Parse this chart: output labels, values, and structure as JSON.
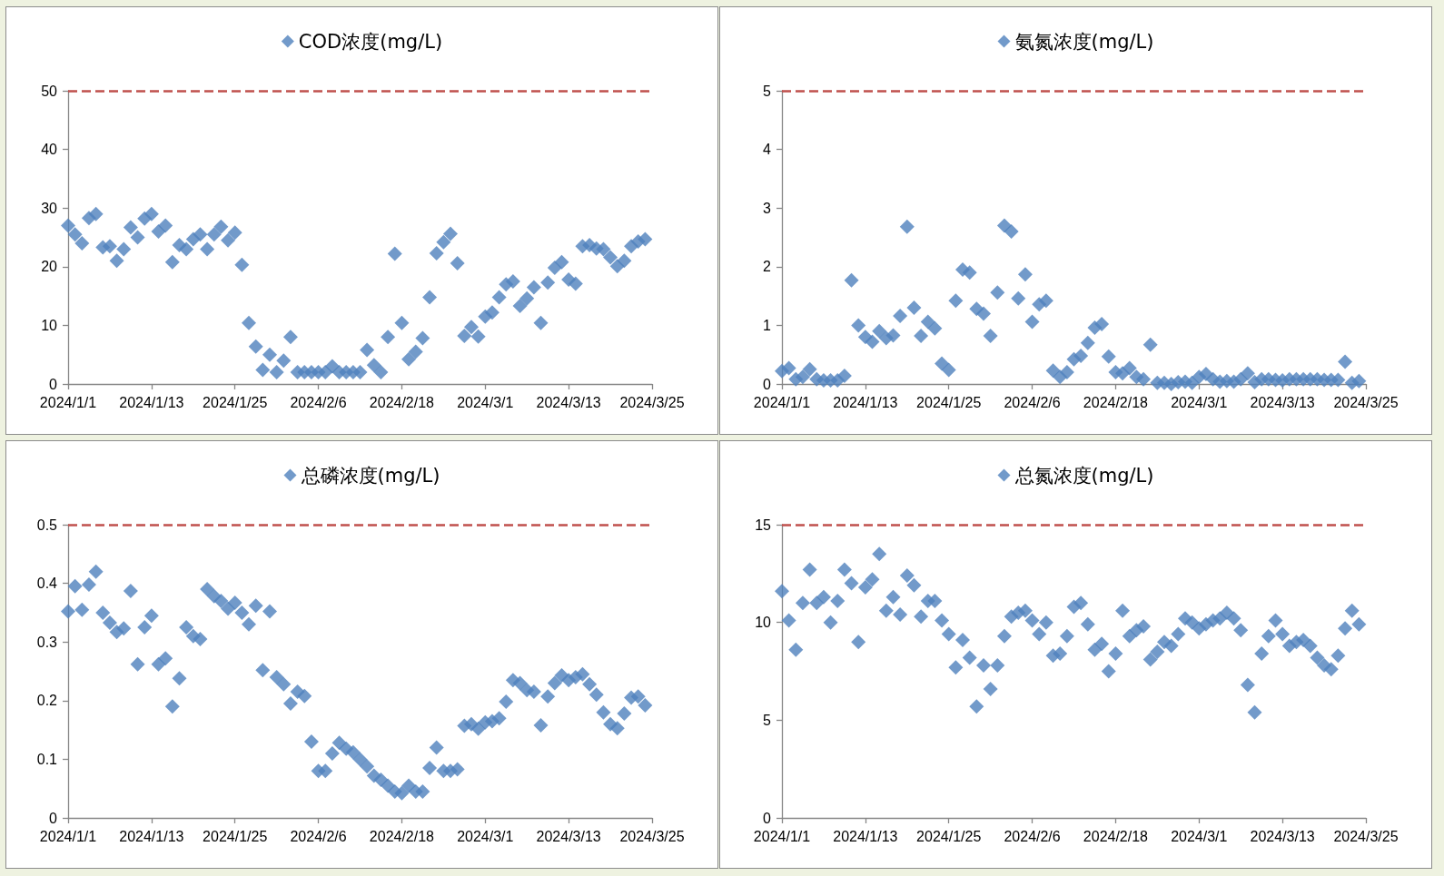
{
  "chart_data": [
    {
      "type": "scatter",
      "legend": "top",
      "marker": "diamond",
      "grid": false,
      "x": [
        "2024-01-01",
        "2024-01-02",
        "2024-01-03",
        "2024-01-04",
        "2024-01-05",
        "2024-01-06",
        "2024-01-07",
        "2024-01-08",
        "2024-01-09",
        "2024-01-10",
        "2024-01-11",
        "2024-01-12",
        "2024-01-13",
        "2024-01-14",
        "2024-01-15",
        "2024-01-16",
        "2024-01-17",
        "2024-01-18",
        "2024-01-19",
        "2024-01-20",
        "2024-01-21",
        "2024-01-22",
        "2024-01-23",
        "2024-01-24",
        "2024-01-25",
        "2024-01-26",
        "2024-01-27",
        "2024-01-28",
        "2024-01-29",
        "2024-01-30",
        "2024-01-31",
        "2024-02-01",
        "2024-02-02",
        "2024-02-03",
        "2024-02-04",
        "2024-02-05",
        "2024-02-06",
        "2024-02-07",
        "2024-02-08",
        "2024-02-09",
        "2024-02-10",
        "2024-02-11",
        "2024-02-12",
        "2024-02-13",
        "2024-02-14",
        "2024-02-15",
        "2024-02-16",
        "2024-02-17",
        "2024-02-18",
        "2024-02-19",
        "2024-02-20",
        "2024-02-21",
        "2024-02-22",
        "2024-02-23",
        "2024-02-24",
        "2024-02-25",
        "2024-02-26",
        "2024-02-27",
        "2024-02-28",
        "2024-02-29",
        "2024-03-01",
        "2024-03-02",
        "2024-03-03",
        "2024-03-04",
        "2024-03-05",
        "2024-03-06",
        "2024-03-07",
        "2024-03-08",
        "2024-03-09",
        "2024-03-10",
        "2024-03-11",
        "2024-03-12",
        "2024-03-13",
        "2024-03-14",
        "2024-03-15",
        "2024-03-16",
        "2024-03-17",
        "2024-03-18",
        "2024-03-19",
        "2024-03-20",
        "2024-03-21",
        "2024-03-22",
        "2024-03-23",
        "2024-03-24"
      ],
      "xlim": [
        "2024-01-01",
        "2024-03-25"
      ],
      "xticks": [
        {
          "value": "2024-01-01",
          "label": "2024/1/1"
        },
        {
          "value": "2024-01-13",
          "label": "2024/1/13"
        },
        {
          "value": "2024-01-25",
          "label": "2024/1/25"
        },
        {
          "value": "2024-02-06",
          "label": "2024/2/6"
        },
        {
          "value": "2024-02-18",
          "label": "2024/2/18"
        },
        {
          "value": "2024-03-01",
          "label": "2024/3/1"
        },
        {
          "value": "2024-03-13",
          "label": "2024/3/13"
        },
        {
          "value": "2024-03-25",
          "label": "2024/3/25"
        }
      ],
      "ylim": [
        0,
        50
      ],
      "yticks": [
        0,
        10,
        20,
        30,
        40,
        50
      ],
      "ref_lines": [
        {
          "axis": "y",
          "value": 50,
          "color": "#c0504d",
          "line_style": "dashed"
        }
      ],
      "series": [
        {
          "name": "COD浓度(mg/L)",
          "color": "#4f81bd",
          "values": [
            27,
            25.5,
            24,
            28.3,
            29,
            23.3,
            23.5,
            21,
            23,
            26.7,
            25,
            28.2,
            29,
            26,
            27,
            20.8,
            23.7,
            23,
            24.7,
            25.5,
            23,
            25.5,
            26.8,
            24.5,
            25.8,
            20.3,
            10.4,
            6.4,
            2.4,
            5,
            2,
            4,
            8,
            2,
            2,
            2,
            2,
            2,
            3,
            2,
            2,
            2,
            2,
            5.8,
            3.2,
            2,
            8,
            22.2,
            10.4,
            4.2,
            5.5,
            7.8,
            14.8,
            22.3,
            24.2,
            25.6,
            20.6,
            8.2,
            9.7,
            8.1,
            11.5,
            12.2,
            14.8,
            17,
            17.5,
            13.3,
            14.6,
            16.5,
            10.4,
            17.3,
            19.8,
            20.8,
            17.8,
            17.1,
            23.5,
            23.7,
            23.1,
            23,
            21.6,
            20.1,
            21,
            23.5,
            24.3,
            24.7
          ]
        }
      ]
    },
    {
      "type": "scatter",
      "legend": "top",
      "marker": "diamond",
      "grid": false,
      "x": [
        "2024-01-01",
        "2024-01-02",
        "2024-01-03",
        "2024-01-04",
        "2024-01-05",
        "2024-01-06",
        "2024-01-07",
        "2024-01-08",
        "2024-01-09",
        "2024-01-10",
        "2024-01-11",
        "2024-01-12",
        "2024-01-13",
        "2024-01-14",
        "2024-01-15",
        "2024-01-16",
        "2024-01-17",
        "2024-01-18",
        "2024-01-19",
        "2024-01-20",
        "2024-01-21",
        "2024-01-22",
        "2024-01-23",
        "2024-01-24",
        "2024-01-25",
        "2024-01-26",
        "2024-01-27",
        "2024-01-28",
        "2024-01-29",
        "2024-01-30",
        "2024-01-31",
        "2024-02-01",
        "2024-02-02",
        "2024-02-03",
        "2024-02-04",
        "2024-02-05",
        "2024-02-06",
        "2024-02-07",
        "2024-02-08",
        "2024-02-09",
        "2024-02-10",
        "2024-02-11",
        "2024-02-12",
        "2024-02-13",
        "2024-02-14",
        "2024-02-15",
        "2024-02-16",
        "2024-02-17",
        "2024-02-18",
        "2024-02-19",
        "2024-02-20",
        "2024-02-21",
        "2024-02-22",
        "2024-02-23",
        "2024-02-24",
        "2024-02-25",
        "2024-02-26",
        "2024-02-27",
        "2024-02-28",
        "2024-02-29",
        "2024-03-01",
        "2024-03-02",
        "2024-03-03",
        "2024-03-04",
        "2024-03-05",
        "2024-03-06",
        "2024-03-07",
        "2024-03-08",
        "2024-03-09",
        "2024-03-10",
        "2024-03-11",
        "2024-03-12",
        "2024-03-13",
        "2024-03-14",
        "2024-03-15",
        "2024-03-16",
        "2024-03-17",
        "2024-03-18",
        "2024-03-19",
        "2024-03-20",
        "2024-03-21",
        "2024-03-22",
        "2024-03-23",
        "2024-03-24"
      ],
      "xlim": [
        "2024-01-01",
        "2024-03-25"
      ],
      "xticks": [
        {
          "value": "2024-01-01",
          "label": "2024/1/1"
        },
        {
          "value": "2024-01-13",
          "label": "2024/1/13"
        },
        {
          "value": "2024-01-25",
          "label": "2024/1/25"
        },
        {
          "value": "2024-02-06",
          "label": "2024/2/6"
        },
        {
          "value": "2024-02-18",
          "label": "2024/2/18"
        },
        {
          "value": "2024-03-01",
          "label": "2024/3/1"
        },
        {
          "value": "2024-03-13",
          "label": "2024/3/13"
        },
        {
          "value": "2024-03-25",
          "label": "2024/3/25"
        }
      ],
      "ylim": [
        0,
        5
      ],
      "yticks": [
        0,
        1,
        2,
        3,
        4,
        5
      ],
      "ref_lines": [
        {
          "axis": "y",
          "value": 5,
          "color": "#c0504d",
          "line_style": "dashed"
        }
      ],
      "series": [
        {
          "name": "氨氮浓度(mg/L)",
          "color": "#4f81bd",
          "values": [
            0.22,
            0.27,
            0.08,
            0.12,
            0.25,
            0.08,
            0.06,
            0.06,
            0.06,
            0.14,
            1.77,
            1,
            0.8,
            0.72,
            0.9,
            0.78,
            0.83,
            1.16,
            2.68,
            1.3,
            0.82,
            1.06,
            0.95,
            0.35,
            0.24,
            1.42,
            1.95,
            1.9,
            1.28,
            1.2,
            0.82,
            1.56,
            2.7,
            2.6,
            1.46,
            1.87,
            1.06,
            1.36,
            1.42,
            0.23,
            0.12,
            0.2,
            0.42,
            0.48,
            0.7,
            0.96,
            1.02,
            0.47,
            0.2,
            0.18,
            0.27,
            0.12,
            0.08,
            0.67,
            0.02,
            0.02,
            0,
            0.03,
            0.04,
            0.02,
            0.12,
            0.17,
            0.08,
            0.04,
            0.05,
            0.04,
            0.08,
            0.18,
            0.03,
            0.08,
            0.08,
            0.07,
            0.06,
            0.08,
            0.08,
            0.08,
            0.08,
            0.08,
            0.07,
            0.07,
            0.07,
            0.38,
            0.02,
            0.05
          ]
        }
      ]
    },
    {
      "type": "scatter",
      "legend": "top",
      "marker": "diamond",
      "grid": false,
      "x": [
        "2024-01-01",
        "2024-01-02",
        "2024-01-03",
        "2024-01-04",
        "2024-01-05",
        "2024-01-06",
        "2024-01-07",
        "2024-01-08",
        "2024-01-09",
        "2024-01-10",
        "2024-01-11",
        "2024-01-12",
        "2024-01-13",
        "2024-01-14",
        "2024-01-15",
        "2024-01-16",
        "2024-01-17",
        "2024-01-18",
        "2024-01-19",
        "2024-01-20",
        "2024-01-21",
        "2024-01-22",
        "2024-01-23",
        "2024-01-24",
        "2024-01-25",
        "2024-01-26",
        "2024-01-27",
        "2024-01-28",
        "2024-01-29",
        "2024-01-30",
        "2024-01-31",
        "2024-02-01",
        "2024-02-02",
        "2024-02-03",
        "2024-02-04",
        "2024-02-05",
        "2024-02-06",
        "2024-02-07",
        "2024-02-08",
        "2024-02-09",
        "2024-02-10",
        "2024-02-11",
        "2024-02-12",
        "2024-02-13",
        "2024-02-14",
        "2024-02-15",
        "2024-02-16",
        "2024-02-17",
        "2024-02-18",
        "2024-02-19",
        "2024-02-20",
        "2024-02-21",
        "2024-02-22",
        "2024-02-23",
        "2024-02-24",
        "2024-02-25",
        "2024-02-26",
        "2024-02-27",
        "2024-02-28",
        "2024-02-29",
        "2024-03-01",
        "2024-03-02",
        "2024-03-03",
        "2024-03-04",
        "2024-03-05",
        "2024-03-06",
        "2024-03-07",
        "2024-03-08",
        "2024-03-09",
        "2024-03-10",
        "2024-03-11",
        "2024-03-12",
        "2024-03-13",
        "2024-03-14",
        "2024-03-15",
        "2024-03-16",
        "2024-03-17",
        "2024-03-18",
        "2024-03-19",
        "2024-03-20",
        "2024-03-21",
        "2024-03-22",
        "2024-03-23",
        "2024-03-24"
      ],
      "xlim": [
        "2024-01-01",
        "2024-03-25"
      ],
      "xticks": [
        {
          "value": "2024-01-01",
          "label": "2024/1/1"
        },
        {
          "value": "2024-01-13",
          "label": "2024/1/13"
        },
        {
          "value": "2024-01-25",
          "label": "2024/1/25"
        },
        {
          "value": "2024-02-06",
          "label": "2024/2/6"
        },
        {
          "value": "2024-02-18",
          "label": "2024/2/18"
        },
        {
          "value": "2024-03-01",
          "label": "2024/3/1"
        },
        {
          "value": "2024-03-13",
          "label": "2024/3/13"
        },
        {
          "value": "2024-03-25",
          "label": "2024/3/25"
        }
      ],
      "ylim": [
        0,
        0.5
      ],
      "yticks": [
        0,
        0.1,
        0.2,
        0.3,
        0.4,
        0.5
      ],
      "ref_lines": [
        {
          "axis": "y",
          "value": 0.5,
          "color": "#c0504d",
          "line_style": "dashed"
        }
      ],
      "series": [
        {
          "name": "总磷浓度(mg/L)",
          "color": "#4f81bd",
          "values": [
            0.352,
            0.395,
            0.355,
            0.398,
            0.42,
            0.35,
            0.333,
            0.317,
            0.323,
            0.387,
            0.262,
            0.325,
            0.345,
            0.262,
            0.272,
            0.19,
            0.238,
            0.325,
            0.31,
            0.305,
            0.39,
            0.378,
            0.37,
            0.357,
            0.367,
            0.35,
            0.33,
            0.362,
            0.252,
            0.352,
            0.24,
            0.228,
            0.195,
            0.215,
            0.208,
            0.13,
            0.08,
            0.08,
            0.11,
            0.128,
            0.118,
            0.112,
            0.1,
            0.088,
            0.072,
            0.065,
            0.055,
            0.045,
            0.042,
            0.055,
            0.045,
            0.045,
            0.085,
            0.12,
            0.08,
            0.08,
            0.083,
            0.157,
            0.16,
            0.152,
            0.163,
            0.165,
            0.17,
            0.198,
            0.235,
            0.23,
            0.218,
            0.215,
            0.158,
            0.207,
            0.23,
            0.243,
            0.235,
            0.24,
            0.245,
            0.228,
            0.21,
            0.18,
            0.16,
            0.153,
            0.178,
            0.205,
            0.207,
            0.192
          ]
        }
      ]
    },
    {
      "type": "scatter",
      "legend": "top",
      "marker": "diamond",
      "grid": false,
      "x": [
        "2024-01-01",
        "2024-01-02",
        "2024-01-03",
        "2024-01-04",
        "2024-01-05",
        "2024-01-06",
        "2024-01-07",
        "2024-01-08",
        "2024-01-09",
        "2024-01-10",
        "2024-01-11",
        "2024-01-12",
        "2024-01-13",
        "2024-01-14",
        "2024-01-15",
        "2024-01-16",
        "2024-01-17",
        "2024-01-18",
        "2024-01-19",
        "2024-01-20",
        "2024-01-21",
        "2024-01-22",
        "2024-01-23",
        "2024-01-24",
        "2024-01-25",
        "2024-01-26",
        "2024-01-27",
        "2024-01-28",
        "2024-01-29",
        "2024-01-30",
        "2024-01-31",
        "2024-02-01",
        "2024-02-02",
        "2024-02-03",
        "2024-02-04",
        "2024-02-05",
        "2024-02-06",
        "2024-02-07",
        "2024-02-08",
        "2024-02-09",
        "2024-02-10",
        "2024-02-11",
        "2024-02-12",
        "2024-02-13",
        "2024-02-14",
        "2024-02-15",
        "2024-02-16",
        "2024-02-17",
        "2024-02-18",
        "2024-02-19",
        "2024-02-20",
        "2024-02-21",
        "2024-02-22",
        "2024-02-23",
        "2024-02-24",
        "2024-02-25",
        "2024-02-26",
        "2024-02-27",
        "2024-02-28",
        "2024-02-29",
        "2024-03-01",
        "2024-03-02",
        "2024-03-03",
        "2024-03-04",
        "2024-03-05",
        "2024-03-06",
        "2024-03-07",
        "2024-03-08",
        "2024-03-09",
        "2024-03-10",
        "2024-03-11",
        "2024-03-12",
        "2024-03-13",
        "2024-03-14",
        "2024-03-15",
        "2024-03-16",
        "2024-03-17",
        "2024-03-18",
        "2024-03-19",
        "2024-03-20",
        "2024-03-21",
        "2024-03-22",
        "2024-03-23",
        "2024-03-24"
      ],
      "xlim": [
        "2024-01-01",
        "2024-03-25"
      ],
      "xticks": [
        {
          "value": "2024-01-01",
          "label": "2024/1/1"
        },
        {
          "value": "2024-01-13",
          "label": "2024/1/13"
        },
        {
          "value": "2024-01-25",
          "label": "2024/1/25"
        },
        {
          "value": "2024-02-06",
          "label": "2024/2/6"
        },
        {
          "value": "2024-02-18",
          "label": "2024/2/18"
        },
        {
          "value": "2024-03-01",
          "label": "2024/3/1"
        },
        {
          "value": "2024-03-13",
          "label": "2024/3/13"
        },
        {
          "value": "2024-03-25",
          "label": "2024/3/25"
        }
      ],
      "ylim": [
        0,
        15
      ],
      "yticks": [
        0,
        5,
        10,
        15
      ],
      "ref_lines": [
        {
          "axis": "y",
          "value": 15,
          "color": "#c0504d",
          "line_style": "dashed"
        }
      ],
      "series": [
        {
          "name": "总氮浓度(mg/L)",
          "color": "#4f81bd",
          "values": [
            11.6,
            10.1,
            8.6,
            11,
            12.7,
            11,
            11.3,
            10,
            11.1,
            12.7,
            12,
            9,
            11.8,
            12.2,
            13.5,
            10.6,
            11.3,
            10.4,
            12.4,
            11.9,
            10.3,
            11.1,
            11.1,
            10.1,
            9.4,
            7.7,
            9.1,
            8.2,
            5.7,
            7.8,
            6.6,
            7.8,
            9.3,
            10.3,
            10.5,
            10.6,
            10.1,
            9.4,
            10,
            8.3,
            8.4,
            9.3,
            10.8,
            11,
            9.9,
            8.6,
            8.9,
            7.5,
            8.4,
            10.6,
            9.3,
            9.6,
            9.8,
            8.1,
            8.5,
            9,
            8.8,
            9.4,
            10.2,
            10,
            9.7,
            9.9,
            10.1,
            10.2,
            10.5,
            10.2,
            9.6,
            6.8,
            5.4,
            8.4,
            9.3,
            10.1,
            9.4,
            8.8,
            9,
            9.1,
            8.8,
            8.2,
            7.8,
            7.6,
            8.3,
            9.7,
            10.6,
            9.9
          ]
        }
      ]
    }
  ]
}
